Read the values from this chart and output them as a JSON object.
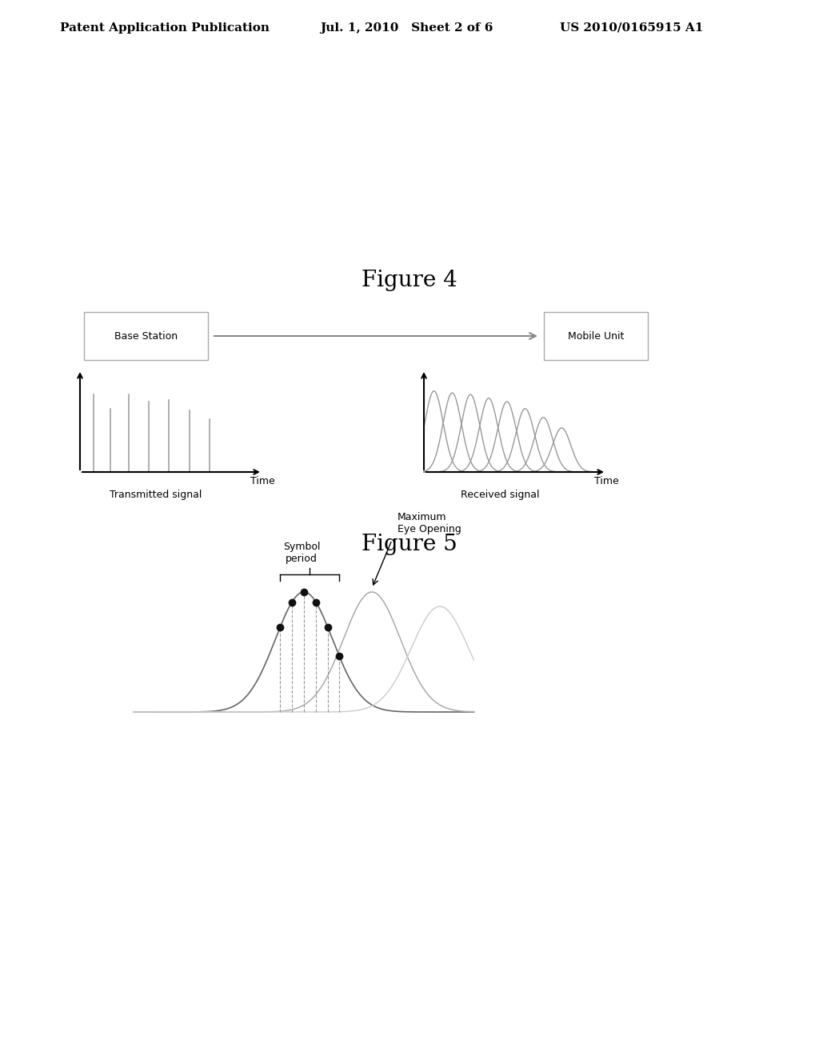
{
  "header_left": "Patent Application Publication",
  "header_center": "Jul. 1, 2010   Sheet 2 of 6",
  "header_right": "US 2010/0165915 A1",
  "fig4_title": "Figure 4",
  "fig5_title": "Figure 5",
  "box1_label": "Base Station",
  "box2_label": "Mobile Unit",
  "transmitted_label": "Transmitted signal",
  "received_label": "Received signal",
  "time_label": "Time",
  "symbol_period_label": "Symbol\nperiod",
  "max_eye_label": "Maximum\nEye Opening",
  "bg_color": "#ffffff",
  "line_color": "#000000",
  "gray_color": "#999999",
  "dark_gray": "#555555"
}
